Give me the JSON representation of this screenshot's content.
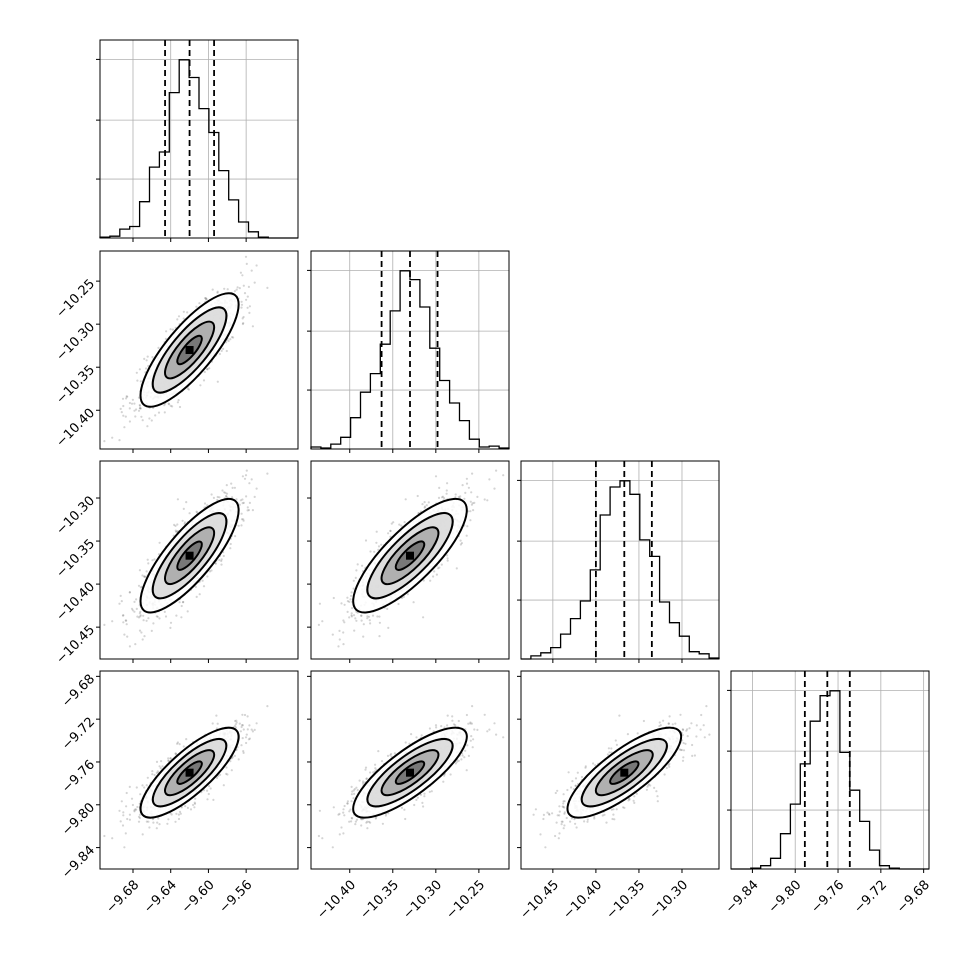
{
  "chart_data": {
    "type": "corner",
    "n_params": 4,
    "params": [
      {
        "mean": -9.62,
        "sigma": 0.026,
        "quantiles": [
          -9.646,
          -9.62,
          -9.594
        ],
        "range": [
          -9.715,
          -9.505
        ],
        "ticks": [
          -9.68,
          -9.64,
          -9.6,
          -9.56
        ],
        "tick_labels": [
          "−9.68",
          "−9.64",
          "−9.60",
          "−9.56"
        ]
      },
      {
        "mean": -10.33,
        "sigma": 0.033,
        "quantiles": [
          -10.363,
          -10.33,
          -10.298
        ],
        "range": [
          -10.445,
          -10.215
        ],
        "ticks": [
          -10.4,
          -10.35,
          -10.3,
          -10.25
        ],
        "tick_labels": [
          "−10.40",
          "−10.35",
          "−10.30",
          "−10.25"
        ]
      },
      {
        "mean": -10.367,
        "sigma": 0.033,
        "quantiles": [
          -10.4,
          -10.367,
          -10.335
        ],
        "range": [
          -10.487,
          -10.257
        ],
        "ticks": [
          -10.45,
          -10.4,
          -10.35,
          -10.3
        ],
        "tick_labels": [
          "−10.45",
          "−10.40",
          "−10.35",
          "−10.30"
        ]
      },
      {
        "mean": -9.77,
        "sigma": 0.021,
        "quantiles": [
          -9.791,
          -9.77,
          -9.749
        ],
        "range": [
          -9.86,
          -9.675
        ],
        "ticks": [
          -9.84,
          -9.8,
          -9.76,
          -9.72,
          -9.68
        ],
        "tick_labels": [
          "−9.84",
          "−9.80",
          "−9.76",
          "−9.72",
          "−9.68"
        ]
      }
    ],
    "correlation": 0.8,
    "hist_bins": 20,
    "n_samples": 1200,
    "contour_levels_sigma": [
      0.5,
      1.0,
      1.5,
      2.0
    ],
    "grid": true
  }
}
